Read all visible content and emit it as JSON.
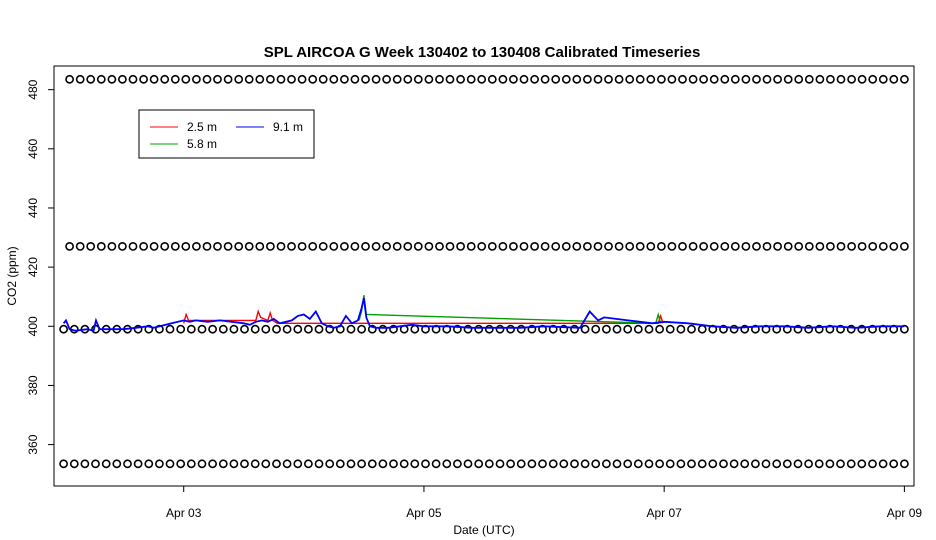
{
  "chart_data": {
    "type": "line",
    "title": "SPL AIRCOA G  Week 130402 to 130408  Calibrated Timeseries",
    "xlabel": "Date (UTC)",
    "ylabel": "CO2 (ppm)",
    "x_ticks": [
      "Apr 03",
      "Apr 05",
      "Apr 07",
      "Apr 09"
    ],
    "x_tick_days": [
      1,
      3,
      5,
      7
    ],
    "y_ticks": [
      360,
      380,
      400,
      420,
      440,
      460,
      480
    ],
    "xlim": [
      -0.08,
      7.08
    ],
    "ylim": [
      346,
      488
    ],
    "grid": false,
    "legend": {
      "placement": "top-left",
      "entries": [
        {
          "name": "2.5 m",
          "color": "#ff0000"
        },
        {
          "name": "5.8 m",
          "color": "#00a000"
        },
        {
          "name": "9.1 m",
          "color": "#0000ff"
        }
      ]
    },
    "series": [
      {
        "name": "2.5 m",
        "color": "#ff0000",
        "x": [
          1.0,
          1.02,
          1.04,
          1.6,
          1.62,
          1.64,
          1.7,
          1.72,
          1.74,
          1.78,
          4.95,
          4.97,
          4.99
        ],
        "y": [
          401,
          404,
          402,
          402,
          405,
          403,
          402,
          404.5,
          402,
          401,
          401,
          403.5,
          401
        ]
      },
      {
        "name": "5.8 m",
        "color": "#00a000",
        "x": [
          2.46,
          2.48,
          2.5,
          2.52,
          4.93,
          4.95,
          4.97
        ],
        "y": [
          402,
          405,
          410.5,
          404,
          401,
          404,
          401
        ]
      },
      {
        "name": "9.1 m",
        "color": "#0000ff",
        "x": [
          0,
          0.02,
          0.05,
          0.1,
          0.2,
          0.25,
          0.27,
          0.3,
          0.4,
          0.5,
          0.6,
          0.7,
          0.75,
          0.8,
          0.9,
          1.0,
          1.05,
          1.1,
          1.2,
          1.3,
          1.4,
          1.5,
          1.55,
          1.6,
          1.65,
          1.7,
          1.75,
          1.8,
          1.9,
          1.95,
          2.0,
          2.05,
          2.1,
          2.15,
          2.2,
          2.25,
          2.3,
          2.35,
          2.4,
          2.45,
          2.48,
          2.5,
          2.52,
          2.55,
          2.6,
          2.7,
          2.8,
          2.9,
          3.0,
          3.2,
          3.4,
          3.6,
          3.8,
          4.0,
          4.3,
          4.38,
          4.45,
          4.5,
          4.6,
          4.7,
          4.8,
          4.9,
          5.0,
          5.2,
          5.4,
          5.6,
          5.8,
          6.0,
          6.2,
          6.4,
          6.6,
          6.8,
          7.0
        ],
        "y": [
          401,
          402,
          399,
          398.5,
          399,
          398.5,
          402,
          399,
          399,
          399,
          399.5,
          400,
          399.5,
          400,
          401,
          402,
          401.5,
          402,
          401.5,
          402,
          401.5,
          401,
          400.5,
          401.5,
          402,
          401.5,
          402.5,
          401,
          402,
          403.5,
          404,
          402.5,
          405,
          401,
          400,
          399.5,
          400,
          403.5,
          401,
          402,
          406,
          409.5,
          403,
          400,
          399.5,
          399.5,
          400,
          400.5,
          400,
          400,
          399.5,
          399.5,
          399.5,
          400,
          399.5,
          405,
          402,
          403,
          402.5,
          402,
          401.5,
          401,
          401.5,
          401,
          400,
          399.5,
          400,
          400,
          399.5,
          400,
          399.5,
          400,
          400
        ]
      }
    ],
    "markers": {
      "symbol": "open-circle",
      "color": "#000000",
      "rows": [
        {
          "y": 483.5,
          "x_start": 0.05,
          "x_end": 7.0,
          "count": 80
        },
        {
          "y": 427,
          "x_start": 0.05,
          "x_end": 7.0,
          "count": 80
        },
        {
          "y": 399,
          "x_start": 0.0,
          "x_end": 7.0,
          "count": 80
        },
        {
          "y": 353.5,
          "x_start": 0.0,
          "x_end": 7.0,
          "count": 80
        }
      ]
    }
  }
}
